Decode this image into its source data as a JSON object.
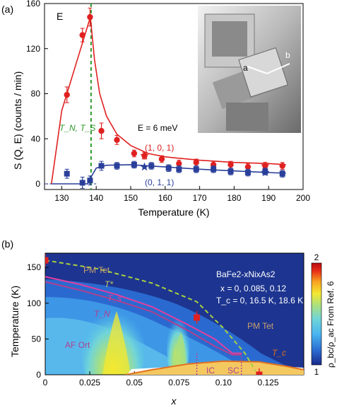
{
  "chart_data": [
    {
      "type": "scatter",
      "panel_label": "(a)",
      "inset_letter": "E",
      "xlabel": "Temperature (K)",
      "ylabel": "S (Q, E) (counts / min)",
      "xlim": [
        125,
        200
      ],
      "ylim": [
        -5,
        160
      ],
      "x_ticks": [
        "130",
        "140",
        "150",
        "160",
        "170",
        "180",
        "190",
        "200"
      ],
      "y_ticks": [
        "0",
        "40",
        "80",
        "120",
        "160"
      ],
      "transition_label": "T_N, T_S",
      "transition_x": 138.5,
      "energy_label": "E = 6 meV",
      "photo_labels": [
        "a",
        "b"
      ],
      "series": [
        {
          "name": "(1, 0, 1)",
          "color": "#e02020",
          "points": [
            {
              "x": 131.5,
              "y": 79,
              "err": 7
            },
            {
              "x": 136.0,
              "y": 132,
              "err": 6
            },
            {
              "x": 138.2,
              "y": 148,
              "err": 8
            },
            {
              "x": 141.5,
              "y": 47,
              "err": 7
            },
            {
              "x": 146.0,
              "y": 39,
              "err": 4
            },
            {
              "x": 151.0,
              "y": 27,
              "err": 3
            },
            {
              "x": 154.0,
              "y": 25,
              "err": 3
            },
            {
              "x": 159.0,
              "y": 22,
              "err": 3
            },
            {
              "x": 164.0,
              "y": 18,
              "err": 3
            },
            {
              "x": 169.0,
              "y": 19,
              "err": 3
            },
            {
              "x": 174.0,
              "y": 17,
              "err": 3
            },
            {
              "x": 179.0,
              "y": 17,
              "err": 3
            },
            {
              "x": 184.0,
              "y": 15,
              "err": 3
            },
            {
              "x": 189.0,
              "y": 16,
              "err": 3
            },
            {
              "x": 194.0,
              "y": 16,
              "err": 3
            }
          ],
          "stars": [
            {
              "x": 154.0,
              "y": 25
            },
            {
              "x": 189.0,
              "y": 16
            }
          ],
          "fit": [
            [
              127,
              0
            ],
            [
              130,
              65
            ],
            [
              132,
              85
            ],
            [
              134,
              105
            ],
            [
              136,
              125
            ],
            [
              138.3,
              148
            ],
            [
              139.5,
              110
            ],
            [
              141,
              80
            ],
            [
              143,
              60
            ],
            [
              146,
              44
            ],
            [
              150,
              34
            ],
            [
              155,
              27
            ],
            [
              160,
              24
            ],
            [
              170,
              21
            ],
            [
              180,
              19
            ],
            [
              190,
              18
            ],
            [
              195,
              17
            ]
          ]
        },
        {
          "name": "(0, 1, 1)",
          "color": "#2a3f9a",
          "points": [
            {
              "x": 131.5,
              "y": 9,
              "err": 4
            },
            {
              "x": 136.0,
              "y": 1,
              "err": 5
            },
            {
              "x": 138.2,
              "y": 3,
              "err": 4
            },
            {
              "x": 141.5,
              "y": 16,
              "err": 4
            },
            {
              "x": 146.0,
              "y": 16,
              "err": 3
            },
            {
              "x": 151.0,
              "y": 17,
              "err": 3
            },
            {
              "x": 156.0,
              "y": 16,
              "err": 3
            },
            {
              "x": 161.0,
              "y": 14,
              "err": 3
            },
            {
              "x": 164.0,
              "y": 13,
              "err": 3
            },
            {
              "x": 169.0,
              "y": 13,
              "err": 3
            },
            {
              "x": 174.0,
              "y": 13,
              "err": 3
            },
            {
              "x": 179.0,
              "y": 11,
              "err": 3
            },
            {
              "x": 184.0,
              "y": 10,
              "err": 3
            },
            {
              "x": 189.0,
              "y": 11,
              "err": 3
            },
            {
              "x": 194.0,
              "y": 9,
              "err": 3
            }
          ],
          "stars": [
            {
              "x": 154.0,
              "y": 15
            },
            {
              "x": 189.0,
              "y": 10
            }
          ],
          "fit": [
            [
              127,
              0
            ],
            [
              137.5,
              0
            ],
            [
              138.3,
              5
            ],
            [
              140,
              14
            ],
            [
              143,
              16.5
            ],
            [
              150,
              17
            ],
            [
              160,
              15
            ],
            [
              170,
              13
            ],
            [
              180,
              11.5
            ],
            [
              190,
              10
            ],
            [
              195,
              9.5
            ]
          ]
        }
      ]
    },
    {
      "type": "heatmap",
      "panel_label": "(b)",
      "xlabel": "x",
      "ylabel": "Temperature (K)",
      "xlim": [
        0,
        0.145
      ],
      "ylim": [
        0,
        170
      ],
      "x_ticks": [
        "0",
        "0.025",
        "0.05",
        "0.075",
        "0.10",
        "0.125"
      ],
      "y_ticks": [
        "0",
        "50",
        "100",
        "150"
      ],
      "colorbar": {
        "min": "1",
        "max": "2",
        "label": "ρ_bc/ρ_ac From Ref. 6",
        "colors": [
          "#1a2a8a",
          "#2a6ad0",
          "#48b4f0",
          "#70d4d8",
          "#a8e080",
          "#f4e830",
          "#f8a020",
          "#e83018",
          "#b80c10"
        ]
      },
      "labels": {
        "pm_tet_top": "PM Tet",
        "pm_tet_right": "PM Tet",
        "af_ort": "AF Ort",
        "tstar": "T*",
        "ts": "T_s",
        "tn": "T_N",
        "tc": "T_c",
        "ic": "IC",
        "sc": "SC"
      },
      "compound": "BaFe2-xNixAs2",
      "info_line1": "x = 0,  0.085, 0.12",
      "info_line2": "T_c = 0,  16.5 K, 18.6 K",
      "tstar_line": [
        [
          0,
          160
        ],
        [
          0.03,
          148
        ],
        [
          0.06,
          128
        ],
        [
          0.085,
          102
        ],
        [
          0.1,
          65
        ],
        [
          0.112,
          30
        ],
        [
          0.118,
          5
        ]
      ],
      "ts_line": [
        [
          0,
          137
        ],
        [
          0.02,
          126
        ],
        [
          0.04,
          112
        ],
        [
          0.06,
          95
        ],
        [
          0.08,
          70
        ],
        [
          0.095,
          50
        ],
        [
          0.105,
          30
        ],
        [
          0.11,
          30
        ]
      ],
      "tn_line": [
        [
          0,
          130
        ],
        [
          0.02,
          118
        ],
        [
          0.04,
          104
        ],
        [
          0.06,
          88
        ],
        [
          0.08,
          62
        ],
        [
          0.095,
          40
        ],
        [
          0.105,
          28
        ],
        [
          0.11,
          28
        ]
      ],
      "tc_dome": [
        [
          0.045,
          0
        ],
        [
          0.06,
          7
        ],
        [
          0.08,
          15
        ],
        [
          0.1,
          19
        ],
        [
          0.12,
          18
        ],
        [
          0.135,
          12
        ],
        [
          0.145,
          7
        ]
      ],
      "points": [
        {
          "x": 0,
          "y": 160
        },
        {
          "x": 0.085,
          "y": 80
        },
        {
          "x": 0.12,
          "y": 0
        }
      ]
    }
  ]
}
